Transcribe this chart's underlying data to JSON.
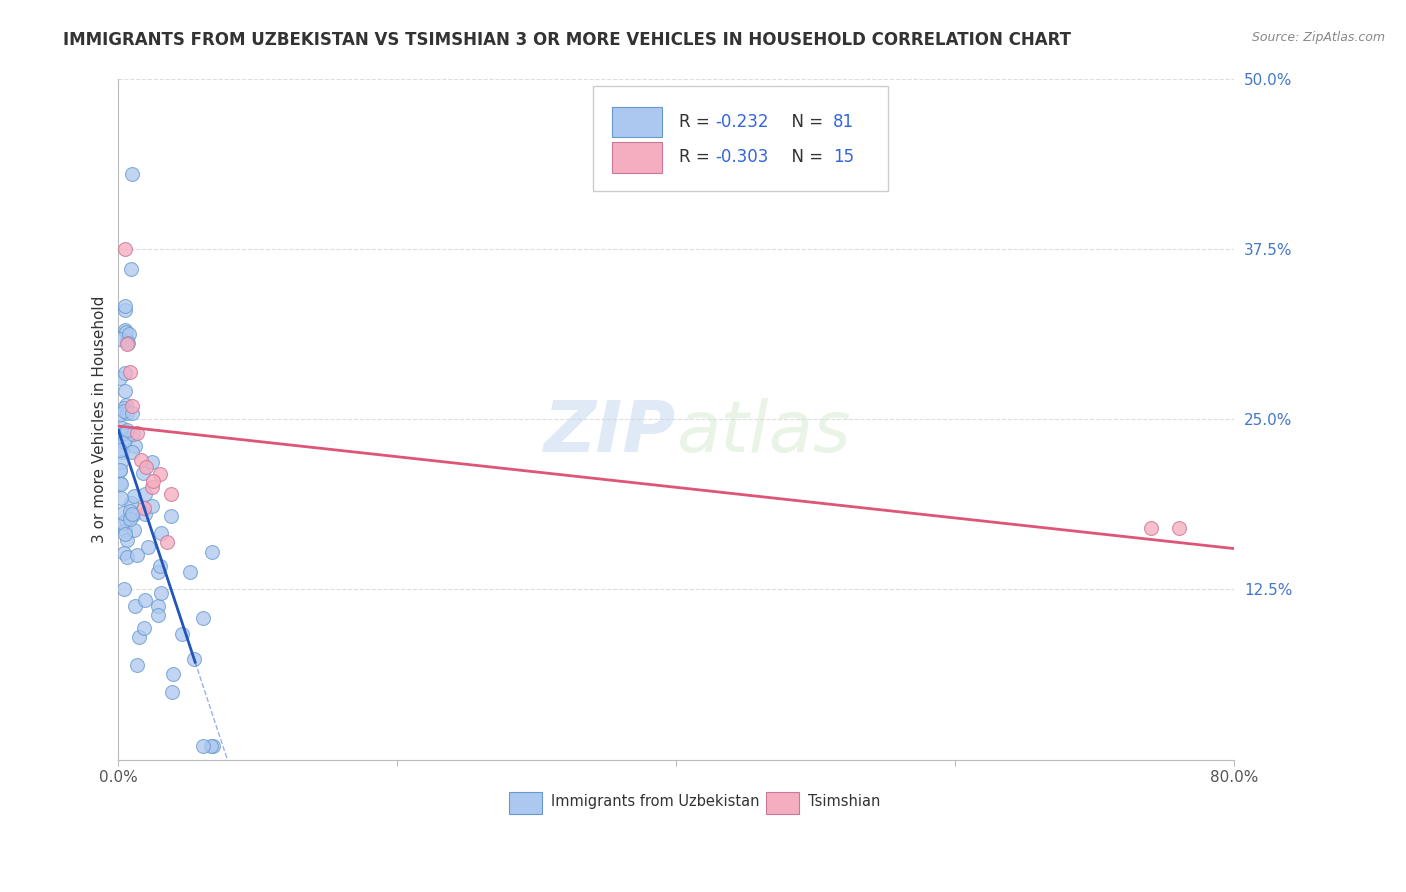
{
  "title": "IMMIGRANTS FROM UZBEKISTAN VS TSIMSHIAN 3 OR MORE VEHICLES IN HOUSEHOLD CORRELATION CHART",
  "source": "Source: ZipAtlas.com",
  "ylabel": "3 or more Vehicles in Household",
  "legend_blue_label": "Immigrants from Uzbekistan",
  "legend_pink_label": "Tsimshian",
  "R_blue": -0.232,
  "N_blue": 81,
  "R_pink": -0.303,
  "N_pink": 15,
  "xlim": [
    0.0,
    0.8
  ],
  "ylim": [
    0.0,
    0.5
  ],
  "xtick_vals": [
    0.0,
    0.2,
    0.4,
    0.6,
    0.8
  ],
  "xtick_labels": [
    "0.0%",
    "",
    "",
    "",
    "80.0%"
  ],
  "ytick_vals": [
    0.0,
    0.125,
    0.25,
    0.375,
    0.5
  ],
  "ytick_labels": [
    "",
    "12.5%",
    "25.0%",
    "37.5%",
    "50.0%"
  ],
  "blue_color": "#adc8f0",
  "blue_edge_color": "#6699cc",
  "pink_color": "#f5aec0",
  "pink_edge_color": "#cc7799",
  "blue_line_color": "#2255bb",
  "pink_line_color": "#dd5577",
  "background_color": "#ffffff",
  "grid_color": "#dddddd",
  "title_fontsize": 12,
  "source_fontsize": 9,
  "axis_label_fontsize": 11,
  "tick_fontsize": 11,
  "legend_fontsize": 12,
  "scatter_size": 100
}
